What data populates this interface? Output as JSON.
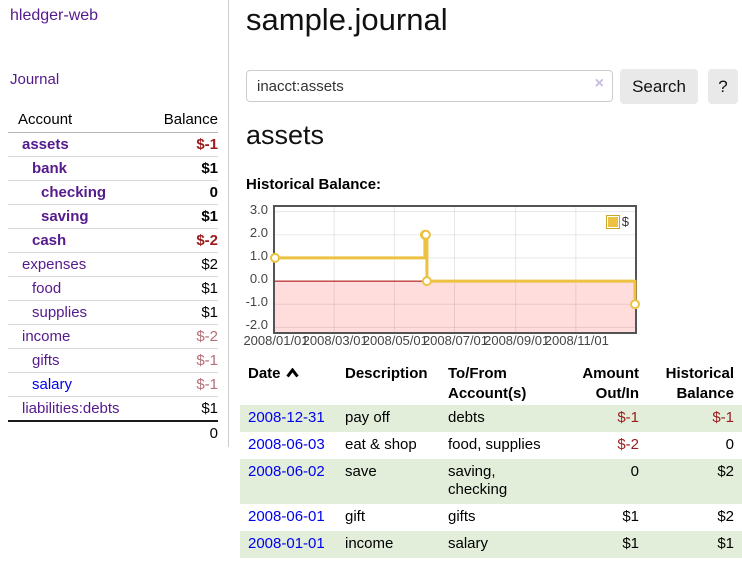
{
  "colors": {
    "link-unvisited": "#0000ee",
    "link-visited": "#551a8b",
    "negative-strong": "#9a1b1b",
    "negative-muted": "#b36d75",
    "stripe-green": "#e2eeda",
    "series-gold": "#edc240",
    "negative-fill": "#ffdddd",
    "zero-line": "#aa0000"
  },
  "sidebar": {
    "brand": "hledger-web",
    "journal_link": "Journal",
    "accounts_table": {
      "headers": {
        "account": "Account",
        "balance": "Balance"
      },
      "rows": [
        {
          "account": "assets",
          "depth": 1,
          "bold": true,
          "link_state": "visited",
          "balance": "$-1",
          "balance_style": "neg-strong"
        },
        {
          "account": "bank",
          "depth": 2,
          "bold": true,
          "link_state": "visited",
          "balance": "$1",
          "balance_style": "pos"
        },
        {
          "account": "checking",
          "depth": 3,
          "bold": true,
          "link_state": "visited",
          "balance": "0",
          "balance_style": "pos"
        },
        {
          "account": "saving",
          "depth": 3,
          "bold": true,
          "link_state": "visited",
          "balance": "$1",
          "balance_style": "pos"
        },
        {
          "account": "cash",
          "depth": 2,
          "bold": true,
          "link_state": "visited",
          "balance": "$-2",
          "balance_style": "neg-strong"
        },
        {
          "account": "expenses",
          "depth": 1,
          "bold": false,
          "link_state": "visited",
          "balance": "$2",
          "balance_style": "pos"
        },
        {
          "account": "food",
          "depth": 2,
          "bold": false,
          "link_state": "visited",
          "balance": "$1",
          "balance_style": "pos"
        },
        {
          "account": "supplies",
          "depth": 2,
          "bold": false,
          "link_state": "visited",
          "balance": "$1",
          "balance_style": "pos"
        },
        {
          "account": "income",
          "depth": 1,
          "bold": false,
          "link_state": "visited",
          "balance": "$-2",
          "balance_style": "neg-muted"
        },
        {
          "account": "gifts",
          "depth": 2,
          "bold": false,
          "link_state": "visited",
          "balance": "$-1",
          "balance_style": "neg-muted"
        },
        {
          "account": "salary",
          "depth": 2,
          "bold": false,
          "link_state": "unvisited",
          "balance": "$-1",
          "balance_style": "neg-muted"
        },
        {
          "account": "liabilities:debts",
          "depth": 1,
          "bold": false,
          "link_state": "visited",
          "balance": "$1",
          "balance_style": "pos"
        }
      ],
      "total": "0"
    }
  },
  "main": {
    "title": "sample.journal",
    "search": {
      "value": "inacct:assets",
      "clear_icon": "×",
      "search_button": "Search",
      "help_button": "?"
    },
    "account_heading": "assets",
    "chart_title": "Historical Balance:"
  },
  "chart_data": {
    "type": "line",
    "title": "Historical Balance:",
    "steps": true,
    "x_range": [
      "2008-01-01",
      "2008-12-31"
    ],
    "x_ticks": [
      {
        "date": "2008-01-01",
        "label": "2008/01/01"
      },
      {
        "date": "2008-03-01",
        "label": "2008/03/01"
      },
      {
        "date": "2008-05-01",
        "label": "2008/05/01"
      },
      {
        "date": "2008-07-01",
        "label": "2008/07/01"
      },
      {
        "date": "2008-09-01",
        "label": "2008/09/01"
      },
      {
        "date": "2008-11-01",
        "label": "2008/11/01"
      }
    ],
    "y_ticks": [
      "3.0",
      "2.0",
      "1.0",
      "0.0",
      "-1.0",
      "-2.0"
    ],
    "ylim": [
      -2.2,
      3.2
    ],
    "grid": true,
    "legend_position": "top-right",
    "series": [
      {
        "name": "$",
        "color": "#edc240",
        "points": [
          [
            "2008-01-01",
            1
          ],
          [
            "2008-06-01",
            2
          ],
          [
            "2008-06-02",
            2
          ],
          [
            "2008-06-03",
            0
          ],
          [
            "2008-12-31",
            -1
          ]
        ]
      }
    ],
    "negative_region_below": 0
  },
  "register_table": {
    "headers": [
      "Date",
      "Description",
      "To/From Account(s)",
      "Amount Out/In",
      "Historical Balance"
    ],
    "rows": [
      {
        "date": "2008-12-31",
        "description": "pay off",
        "accounts": "debts",
        "amount": "$-1",
        "amount_neg": true,
        "balance": "$-1",
        "balance_neg": true
      },
      {
        "date": "2008-06-03",
        "description": "eat & shop",
        "accounts": "food, supplies",
        "amount": "$-2",
        "amount_neg": true,
        "balance": "0",
        "balance_neg": false
      },
      {
        "date": "2008-06-02",
        "description": "save",
        "accounts": "saving, checking",
        "amount": "0",
        "amount_neg": false,
        "balance": "$2",
        "balance_neg": false
      },
      {
        "date": "2008-06-01",
        "description": "gift",
        "accounts": "gifts",
        "amount": "$1",
        "amount_neg": false,
        "balance": "$2",
        "balance_neg": false
      },
      {
        "date": "2008-01-01",
        "description": "income",
        "accounts": "salary",
        "amount": "$1",
        "amount_neg": false,
        "balance": "$1",
        "balance_neg": false
      }
    ]
  }
}
